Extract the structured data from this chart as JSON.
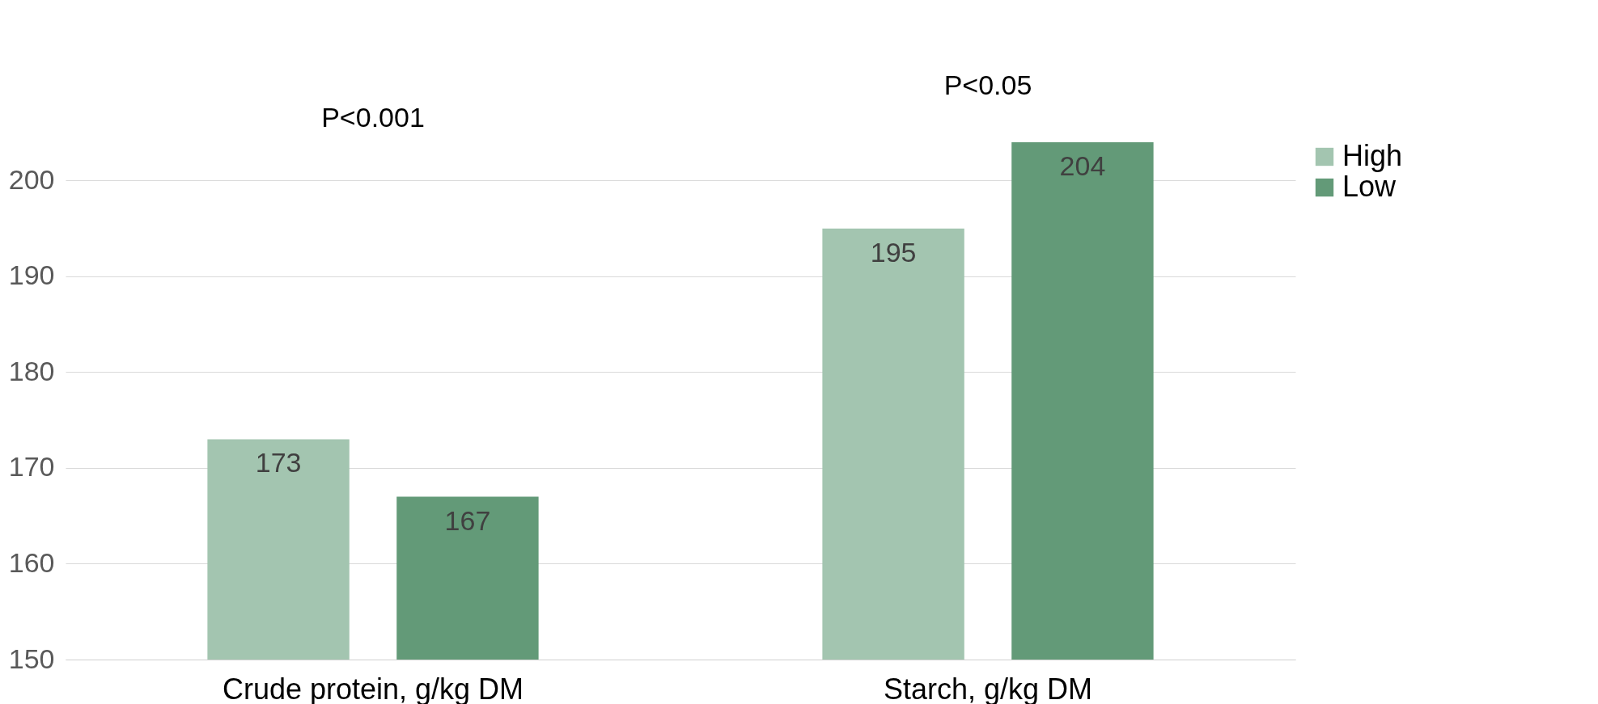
{
  "chart_data": {
    "type": "bar",
    "categories": [
      "Crude protein, g/kg DM",
      "Starch, g/kg DM"
    ],
    "series": [
      {
        "name": "High",
        "color": "#a3c5b0",
        "values": [
          173,
          195
        ]
      },
      {
        "name": "Low",
        "color": "#639a78",
        "values": [
          167,
          204
        ]
      }
    ],
    "ylim": [
      150,
      204
    ],
    "yticks": [
      150,
      160,
      170,
      180,
      190,
      200
    ],
    "grid": "y",
    "legend": "right",
    "data_labels": true,
    "annotations": [
      "P<0.001",
      "P<0.05"
    ]
  }
}
